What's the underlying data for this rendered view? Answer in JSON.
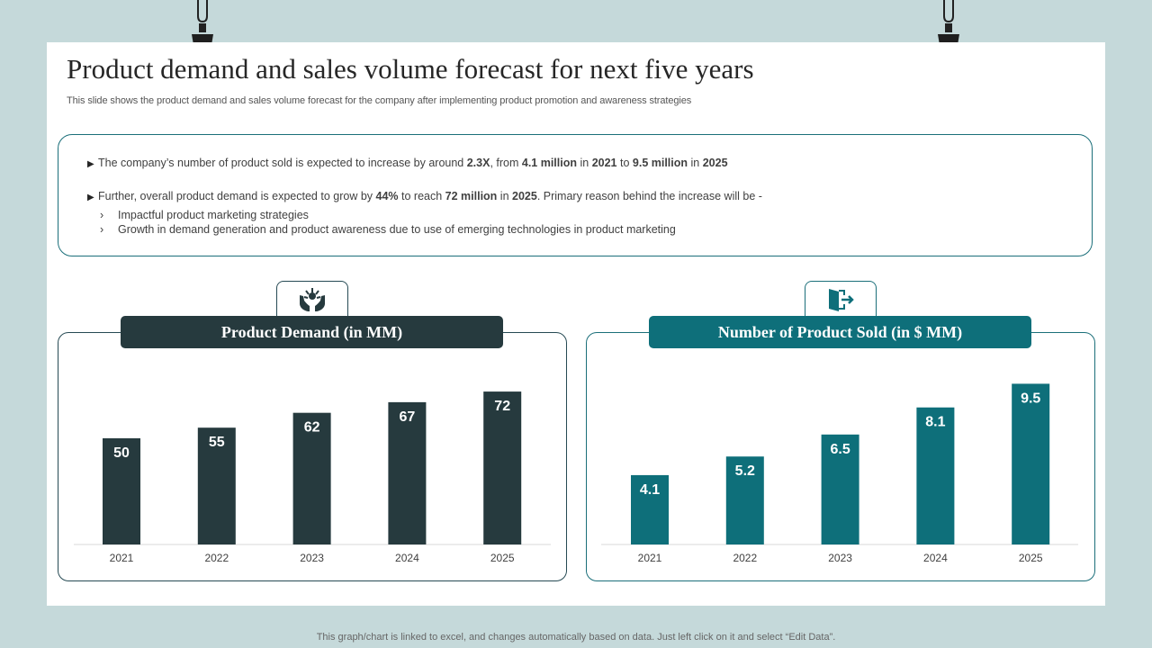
{
  "slide": {
    "title": "Product demand and sales volume forecast for next five years",
    "subtitle": "This slide shows the product demand and sales volume forecast for the company after implementing product promotion and awareness strategies"
  },
  "info": {
    "bullet1": {
      "t1": "The company’s number of product sold is expected to increase by around ",
      "b1": "2.3X",
      "t2": ", from ",
      "b2": "4.1 million",
      "t3": " in ",
      "b3": "2021",
      "t4": " to ",
      "b4": "9.5 million",
      "t5": " in ",
      "b5": "2025"
    },
    "bullet2": {
      "t1": "Further, overall product demand is expected to grow by ",
      "b1": "44%",
      "t2": " to reach ",
      "b2": "72 million",
      "t3": " in ",
      "b3": "2025",
      "t4": ". Primary reason behind the increase will be -"
    },
    "subpoints": [
      "Impactful product marketing strategies",
      "Growth in demand generation and product awareness due to use of emerging technologies in product marketing"
    ]
  },
  "panels": {
    "demand_heading": "Product Demand (in MM)",
    "sold_heading": "Number of Product Sold (in $ MM)",
    "demand_icon": "hands-plant-icon",
    "sold_icon": "exit-door-icon"
  },
  "colors": {
    "demand_bar": "#263a3e",
    "sold_bar": "#0e6f7a",
    "border": "#1b6f7a",
    "background": "#c5d9da"
  },
  "chart_data": [
    {
      "type": "bar",
      "title": "Product Demand (in MM)",
      "categories": [
        "2021",
        "2022",
        "2023",
        "2024",
        "2025"
      ],
      "values": [
        50,
        55,
        62,
        67,
        72
      ],
      "data_labels": [
        "50",
        "55",
        "62",
        "67",
        "72"
      ],
      "xlabel": "",
      "ylabel": "",
      "ylim": [
        0,
        80
      ],
      "grid": false
    },
    {
      "type": "bar",
      "title": "Number of Product Sold (in $ MM)",
      "categories": [
        "2021",
        "2022",
        "2023",
        "2024",
        "2025"
      ],
      "values": [
        4.1,
        5.2,
        6.5,
        8.1,
        9.5
      ],
      "data_labels": [
        "4.1",
        "5.2",
        "6.5",
        "8.1",
        "9.5"
      ],
      "xlabel": "",
      "ylabel": "",
      "ylim": [
        0,
        10
      ],
      "grid": false
    }
  ],
  "footer": "This graph/chart is linked to excel, and changes automatically based on data. Just left click on it and select “Edit Data”."
}
